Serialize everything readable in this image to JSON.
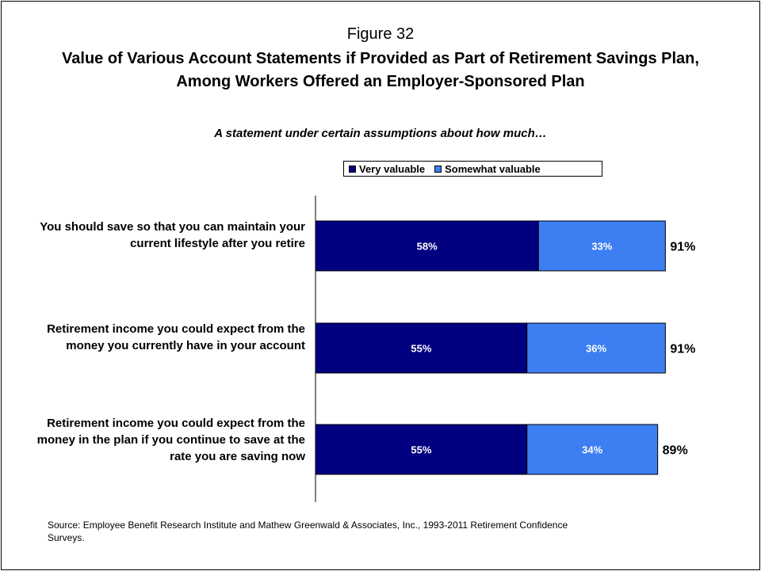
{
  "figure": {
    "number": "Figure 32",
    "title": "Value of Various Account Statements if Provided as Part of Retirement Savings Plan, Among Workers Offered an Employer-Sponsored Plan",
    "subtitle": "A statement under certain assumptions about how much…"
  },
  "legend": {
    "items": [
      {
        "label": "Very valuable",
        "color": "#000080"
      },
      {
        "label": "Somewhat valuable",
        "color": "#3d7ff2"
      }
    ]
  },
  "source": "Source:  Employee Benefit Research Institute and Mathew Greenwald & Associates, Inc., 1993-2011 Retirement Confidence Surveys.",
  "chart_data": {
    "type": "bar",
    "orientation": "horizontal",
    "stacked": true,
    "categories": [
      "You should save so that you can maintain your current lifestyle after you retire",
      "Retirement income you could expect from the money you currently have in your account",
      "Retirement income you could expect from the money in the plan if you continue to save at the rate you are saving now"
    ],
    "series": [
      {
        "name": "Very valuable",
        "color": "#000080",
        "values": [
          58,
          55,
          55
        ],
        "labels": [
          "58%",
          "55%",
          "55%"
        ]
      },
      {
        "name": "Somewhat valuable",
        "color": "#3d7ff2",
        "values": [
          33,
          36,
          34
        ],
        "labels": [
          "33%",
          "36%",
          "34%"
        ]
      }
    ],
    "totals": [
      91,
      91,
      89
    ],
    "total_labels": [
      "91%",
      "91%",
      "89%"
    ],
    "xlim": [
      0,
      100
    ],
    "grid": false,
    "legend_position": "top"
  }
}
